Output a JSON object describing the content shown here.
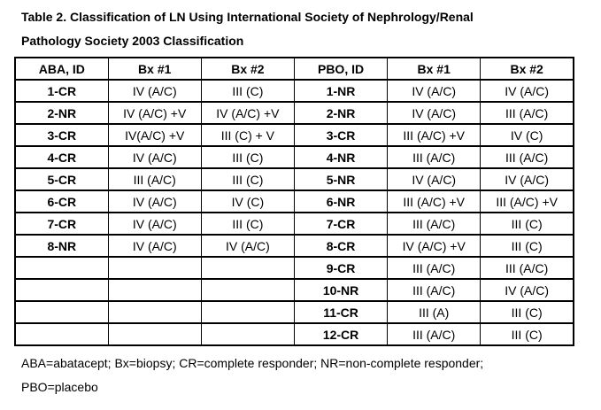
{
  "page": {
    "title_line1": "Table 2. Classification of LN Using International Society of Nephrology/Renal",
    "title_line2": "Pathology Society 2003 Classification",
    "footnote_line1": "ABA=abatacept; Bx=biopsy; CR=complete responder; NR=non-complete responder;",
    "footnote_line2": "PBO=placebo"
  },
  "colors": {
    "text": "#000000",
    "border": "#000000",
    "background": "#ffffff"
  },
  "table": {
    "headers": [
      "ABA, ID",
      "Bx #1",
      "Bx #2",
      "PBO, ID",
      "Bx #1",
      "Bx #2"
    ],
    "id_column_indexes": [
      0,
      3
    ],
    "rows": [
      [
        "1-CR",
        "IV (A/C)",
        "III (C)",
        "1-NR",
        "IV (A/C)",
        "IV (A/C)"
      ],
      [
        "2-NR",
        "IV (A/C) +V",
        "IV (A/C) +V",
        "2-NR",
        "IV (A/C)",
        "III (A/C)"
      ],
      [
        "3-CR",
        "IV(A/C) +V",
        "III (C) + V",
        "3-CR",
        "III (A/C) +V",
        "IV (C)"
      ],
      [
        "4-CR",
        "IV (A/C)",
        "III (C)",
        "4-NR",
        "III (A/C)",
        "III (A/C)"
      ],
      [
        "5-CR",
        "III (A/C)",
        "III (C)",
        "5-NR",
        "IV (A/C)",
        "IV (A/C)"
      ],
      [
        "6-CR",
        "IV (A/C)",
        "IV (C)",
        "6-NR",
        "III (A/C) +V",
        "III (A/C) +V"
      ],
      [
        "7-CR",
        "IV (A/C)",
        "III (C)",
        "7-CR",
        "III (A/C)",
        "III (C)"
      ],
      [
        "8-NR",
        "IV (A/C)",
        "IV (A/C)",
        "8-CR",
        "IV (A/C) +V",
        "III (C)"
      ],
      [
        "",
        "",
        "",
        "9-CR",
        "III (A/C)",
        "III (A/C)"
      ],
      [
        "",
        "",
        "",
        "10-NR",
        "III (A/C)",
        "IV (A/C)"
      ],
      [
        "",
        "",
        "",
        "11-CR",
        "III (A)",
        "III (C)"
      ],
      [
        "",
        "",
        "",
        "12-CR",
        "III (A/C)",
        "III (C)"
      ]
    ]
  }
}
